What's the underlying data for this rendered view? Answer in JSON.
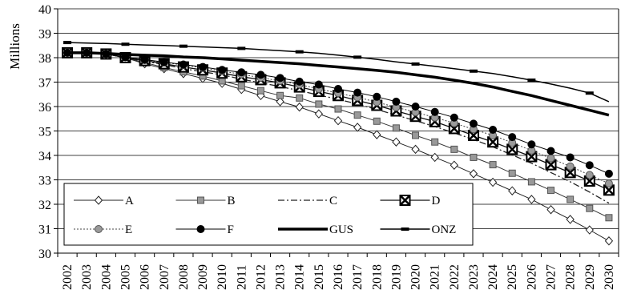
{
  "chart_data": {
    "type": "line",
    "title": "",
    "xlabel": "",
    "ylabel": "Millions",
    "ylim": [
      30,
      40
    ],
    "yticks": [
      30,
      31,
      32,
      33,
      34,
      35,
      36,
      37,
      38,
      39,
      40
    ],
    "grid": "horizontal",
    "legend_position": "bottom-left, inside plot area",
    "x": [
      "2002",
      "2003",
      "2004",
      "2005",
      "2006",
      "2007",
      "2008",
      "2009",
      "2010",
      "2011",
      "2012",
      "2013",
      "2014",
      "2015",
      "2016",
      "2017",
      "2018",
      "2019",
      "2020",
      "2021",
      "2022",
      "2023",
      "2024",
      "2025",
      "2026",
      "2027",
      "2028",
      "2029",
      "2030"
    ],
    "series": [
      {
        "name": "A",
        "color": "#222222",
        "marker": "diamond-open",
        "dash": "",
        "width": 1,
        "values": [
          38.2,
          38.2,
          38.15,
          38.0,
          37.75,
          37.55,
          37.35,
          37.15,
          36.95,
          36.7,
          36.45,
          36.2,
          35.98,
          35.7,
          35.42,
          35.15,
          34.85,
          34.55,
          34.25,
          33.92,
          33.6,
          33.25,
          32.9,
          32.55,
          32.2,
          31.78,
          31.38,
          30.95,
          30.5
        ]
      },
      {
        "name": "B",
        "color": "#333333",
        "marker": "square-gray",
        "dash": "",
        "width": 1,
        "values": [
          38.2,
          38.2,
          38.15,
          38.0,
          37.8,
          37.6,
          37.42,
          37.25,
          37.05,
          36.85,
          36.65,
          36.45,
          36.35,
          36.1,
          35.9,
          35.65,
          35.4,
          35.12,
          34.82,
          34.55,
          34.25,
          33.92,
          33.62,
          33.27,
          32.92,
          32.57,
          32.2,
          31.83,
          31.45
        ]
      },
      {
        "name": "C",
        "color": "#222222",
        "marker": "none",
        "dash": "8,3,2,3",
        "width": 1.3,
        "values": [
          38.2,
          38.2,
          38.15,
          38.0,
          37.85,
          37.72,
          37.55,
          37.42,
          37.3,
          37.12,
          36.97,
          36.82,
          36.65,
          36.47,
          36.3,
          36.1,
          35.88,
          35.65,
          35.42,
          35.18,
          34.92,
          34.65,
          34.35,
          34.02,
          33.68,
          33.3,
          32.92,
          32.5,
          32.05
        ]
      },
      {
        "name": "D",
        "color": "#111111",
        "marker": "square-x",
        "dash": "",
        "width": 1.3,
        "values": [
          38.2,
          38.2,
          38.15,
          38.0,
          37.88,
          37.75,
          37.62,
          37.5,
          37.37,
          37.22,
          37.1,
          36.97,
          36.8,
          36.62,
          36.45,
          36.25,
          36.05,
          35.82,
          35.6,
          35.38,
          35.1,
          34.82,
          34.55,
          34.25,
          33.95,
          33.62,
          33.3,
          32.95,
          32.58
        ]
      },
      {
        "name": "E",
        "color": "#444444",
        "marker": "circle-gray",
        "dash": "2,2",
        "width": 1,
        "values": [
          38.2,
          38.2,
          38.15,
          38.02,
          37.9,
          37.8,
          37.7,
          37.58,
          37.45,
          37.32,
          37.18,
          37.05,
          36.9,
          36.72,
          36.55,
          36.38,
          36.18,
          35.97,
          35.77,
          35.55,
          35.32,
          35.07,
          34.82,
          34.52,
          34.2,
          33.88,
          33.55,
          33.2,
          32.85
        ]
      },
      {
        "name": "F",
        "color": "#000000",
        "marker": "circle-black",
        "dash": "",
        "width": 1,
        "values": [
          38.2,
          38.2,
          38.15,
          38.02,
          37.92,
          37.82,
          37.72,
          37.62,
          37.5,
          37.4,
          37.3,
          37.17,
          37.02,
          36.9,
          36.72,
          36.57,
          36.4,
          36.2,
          36.0,
          35.78,
          35.55,
          35.3,
          35.05,
          34.75,
          34.45,
          34.18,
          33.92,
          33.6,
          33.25
        ]
      },
      {
        "name": "GUS",
        "color": "#000000",
        "marker": "none",
        "dash": "",
        "width": 3.5,
        "values": [
          38.2,
          38.2,
          38.17,
          38.13,
          38.1,
          38.08,
          38.03,
          38.0,
          37.95,
          37.9,
          37.85,
          37.8,
          37.75,
          37.68,
          37.62,
          37.55,
          37.48,
          37.4,
          37.3,
          37.2,
          37.08,
          36.95,
          36.8,
          36.62,
          36.45,
          36.25,
          36.05,
          35.85,
          35.65
        ]
      },
      {
        "name": "ONZ",
        "color": "#000000",
        "marker": "dash",
        "dash": "",
        "width": 1.5,
        "values": [
          38.62,
          38.6,
          38.58,
          38.55,
          38.52,
          38.5,
          38.47,
          38.44,
          38.41,
          38.38,
          38.33,
          38.29,
          38.24,
          38.18,
          38.1,
          38.02,
          37.93,
          37.83,
          37.74,
          37.65,
          37.55,
          37.45,
          37.35,
          37.22,
          37.08,
          36.92,
          36.75,
          36.55,
          36.2
        ]
      }
    ],
    "legend": {
      "rows": [
        [
          "A",
          "B",
          "C",
          "D"
        ],
        [
          "E",
          "F",
          "GUS",
          "ONZ"
        ]
      ]
    }
  }
}
